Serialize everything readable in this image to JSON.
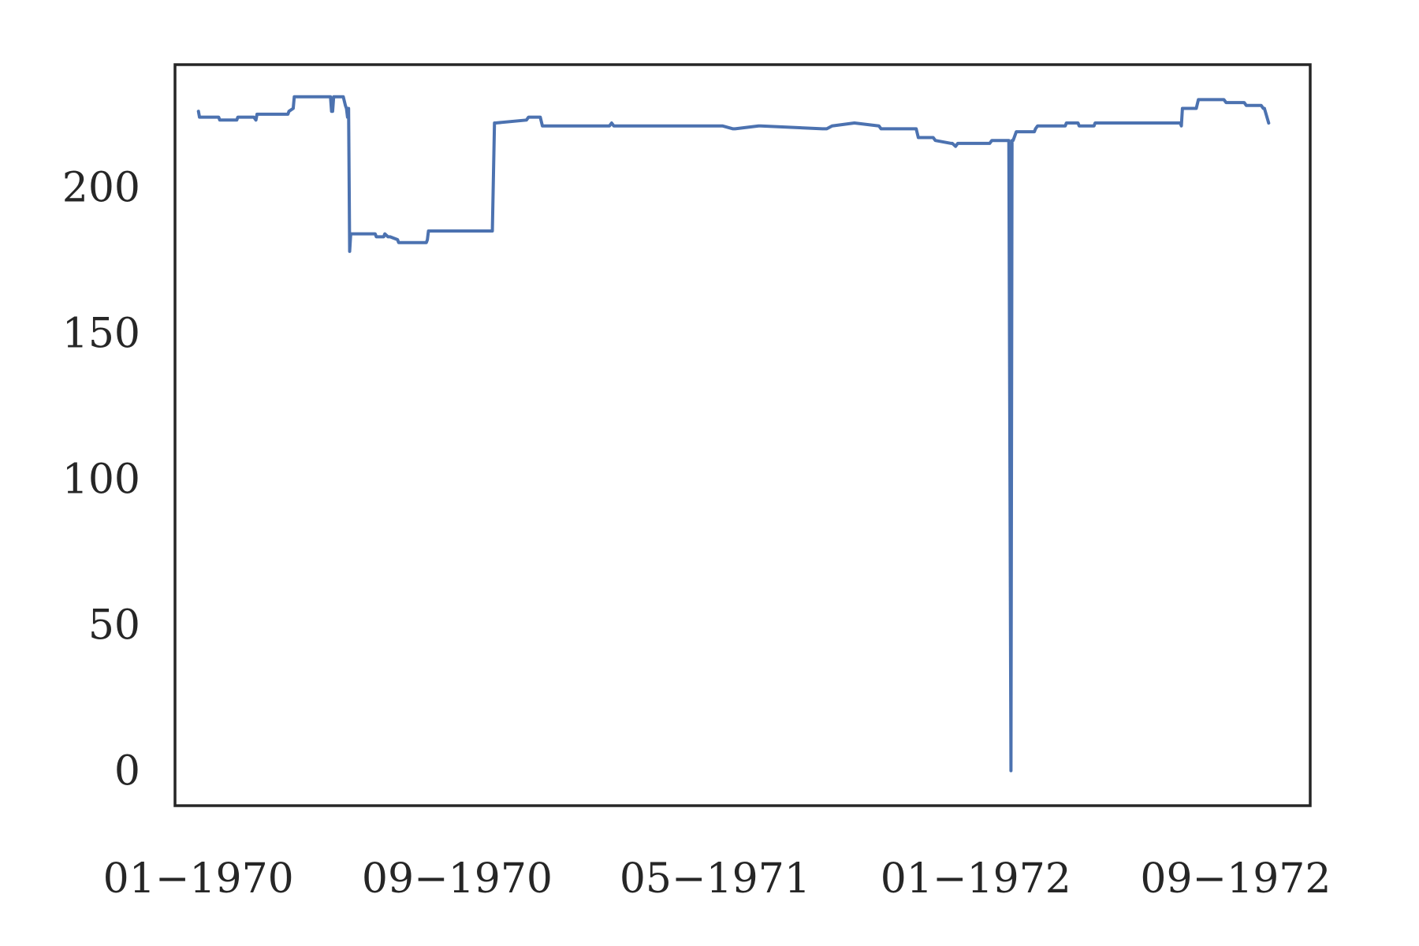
{
  "chart_data": {
    "type": "line",
    "title": "",
    "xlabel": "",
    "ylabel": "",
    "grid": false,
    "legend": "none",
    "colors": {
      "line": "#4c72b0",
      "axes": "#262626",
      "text": "#262626"
    },
    "xlim": [
      "1969-12-10",
      "1972-11-10"
    ],
    "ylim": [
      -12,
      242
    ],
    "x_ticks": [
      {
        "value": "1970-01-01",
        "label": "01−1970"
      },
      {
        "value": "1970-09-01",
        "label": "09−1970"
      },
      {
        "value": "1971-05-01",
        "label": "05−1971"
      },
      {
        "value": "1972-01-01",
        "label": "01−1972"
      },
      {
        "value": "1972-09-01",
        "label": "09−1972"
      }
    ],
    "y_ticks": [
      {
        "value": 0,
        "label": "0"
      },
      {
        "value": 50,
        "label": "50"
      },
      {
        "value": 100,
        "label": "100"
      },
      {
        "value": 150,
        "label": "150"
      },
      {
        "value": 200,
        "label": "200"
      }
    ],
    "series": [
      {
        "x": [
          "1970-01-01",
          "1970-01-02",
          "1970-01-20",
          "1970-01-21",
          "1970-02-06",
          "1970-02-07",
          "1970-02-22",
          "1970-02-24",
          "1970-02-25",
          "1970-03-26",
          "1970-03-27",
          "1970-03-31",
          "1970-04-01",
          "1970-05-05",
          "1970-05-06",
          "1970-05-07",
          "1970-05-08",
          "1970-05-17",
          "1970-05-19",
          "1970-05-20",
          "1970-05-21",
          "1970-05-22",
          "1970-05-23",
          "1970-05-24",
          "1970-06-16",
          "1970-06-17",
          "1970-06-24",
          "1970-06-25",
          "1970-06-28",
          "1970-06-30",
          "1970-07-07",
          "1970-07-08",
          "1970-07-30",
          "1970-07-31",
          "1970-08-01",
          "1970-08-03",
          "1970-08-04",
          "1970-08-05",
          "1970-10-04",
          "1970-10-06",
          "1970-10-07",
          "1970-11-05",
          "1970-11-07",
          "1970-11-18",
          "1970-11-20",
          "1970-11-27",
          "1970-12-02",
          "1971-01-22",
          "1971-01-24",
          "1971-01-26",
          "1971-05-06",
          "1971-05-08",
          "1971-05-18",
          "1971-05-20",
          "1971-06-11",
          "1971-06-13",
          "1971-08-10",
          "1971-08-14",
          "1971-08-19",
          "1971-09-09",
          "1971-10-02",
          "1971-10-04",
          "1971-11-06",
          "1971-11-08",
          "1971-11-22",
          "1971-11-24",
          "1971-12-09",
          "1971-12-10",
          "1971-12-13",
          "1971-12-15",
          "1972-01-14",
          "1972-01-16",
          "1972-02-01",
          "1972-02-03",
          "1972-02-04",
          "1972-02-05",
          "1972-02-06",
          "1972-02-08",
          "1972-02-25",
          "1972-02-26",
          "1972-02-28",
          "1972-03-25",
          "1972-03-26",
          "1972-04-06",
          "1972-04-07",
          "1972-04-21",
          "1972-04-22",
          "1972-07-11",
          "1972-07-12",
          "1972-07-13",
          "1972-07-26",
          "1972-07-28",
          "1972-08-21",
          "1972-08-23",
          "1972-09-09",
          "1972-09-11",
          "1972-09-25",
          "1972-09-27",
          "1972-09-28",
          "1972-10-02"
        ],
        "values": [
          226,
          224,
          224,
          223,
          223,
          224,
          224,
          223,
          225,
          225,
          226,
          227,
          231,
          231,
          226,
          226,
          231,
          231,
          228,
          227,
          224,
          227,
          178,
          184,
          184,
          183,
          183,
          184,
          183,
          183,
          182,
          181,
          181,
          181,
          181,
          181,
          182,
          185,
          185,
          222,
          222,
          223,
          224,
          224,
          221,
          221,
          221,
          221,
          222,
          221,
          221,
          221,
          220,
          220,
          221,
          221,
          220,
          220,
          221,
          222,
          221,
          220,
          220,
          217,
          217,
          216,
          215,
          215,
          214,
          215,
          215,
          216,
          216,
          0,
          216,
          216,
          217,
          219,
          219,
          220,
          221,
          221,
          222,
          222,
          221,
          221,
          222,
          222,
          221,
          227,
          227,
          230,
          230,
          229,
          229,
          228,
          228,
          227,
          227,
          222
        ]
      }
    ]
  }
}
